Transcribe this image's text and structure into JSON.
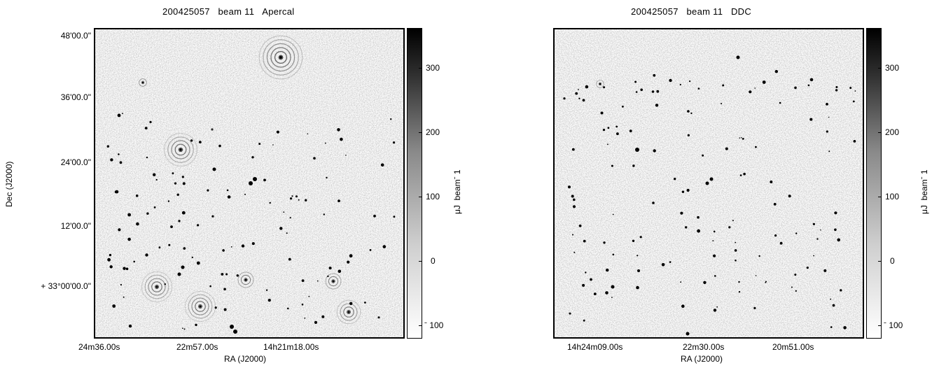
{
  "panels": [
    {
      "title": "200425057   beam 11   Apercal",
      "xlabel": "RA (J2000)",
      "ylabel": "Dec (J2000)",
      "xticks": [
        "24m36.00s",
        "22m57.00s",
        "14h21m18.00s"
      ],
      "yticks": [
        "48'00.0\"",
        "36'00.0\"",
        "24'00.0\"",
        "12'00.0\"",
        "+ 33°00'00.0\""
      ],
      "colorbar": {
        "label": "μJ  beamˉ 1",
        "ticks": [
          "300",
          "200",
          "100",
          "0",
          "ˉ 100"
        ]
      }
    },
    {
      "title": "200425057   beam 11   DDC",
      "xlabel": "RA (J2000)",
      "xticks": [
        "14h24m09.00s",
        "22m30.00s",
        "20m51.00s"
      ],
      "colorbar": {
        "label": "μJ  beamˉ 1",
        "ticks": [
          "300",
          "200",
          "100",
          "0",
          "ˉ 100"
        ]
      }
    }
  ],
  "colors": {
    "background_gray": "#cfcfcf",
    "source_color": "#000000",
    "frame_color": "#000000"
  }
}
